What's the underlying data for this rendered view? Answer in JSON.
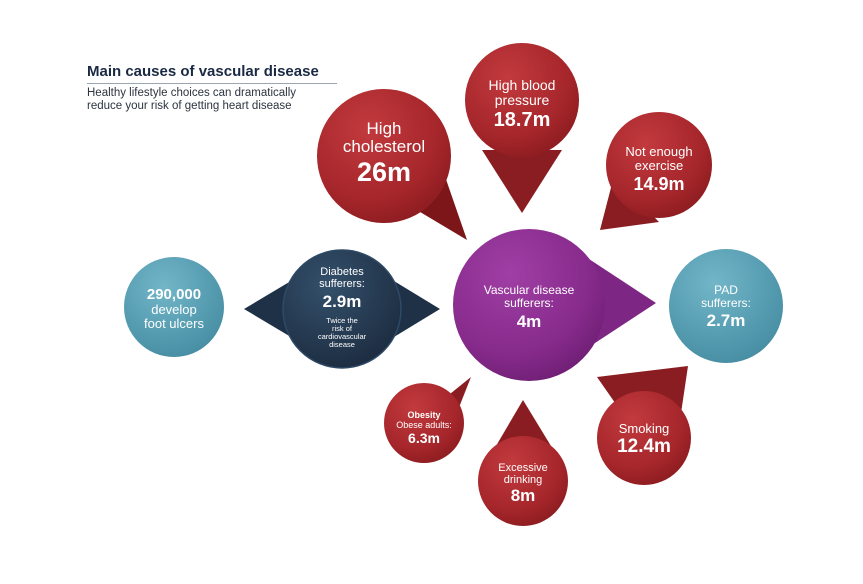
{
  "title": "Main causes of vascular disease",
  "subtitle_line1": "Healthy lifestyle choices can dramatically",
  "subtitle_line2": "reduce your risk of getting heart disease",
  "colors": {
    "risk_red": "#a5262b",
    "risk_red_dark": "#7d1618",
    "vascular_purple": "#8a2c8e",
    "diabetes_navy": "#1f3147",
    "pad_teal": "#4e98ad",
    "title_navy": "#1b2a44"
  },
  "center": {
    "label_line1": "Vascular disease",
    "label_line2": "sufferers:",
    "value": "4m"
  },
  "high_cholesterol": {
    "label_line1": "High",
    "label_line2": "cholesterol",
    "value": "26m"
  },
  "high_blood_pressure": {
    "label_line1": "High blood",
    "label_line2": "pressure",
    "value": "18.7m"
  },
  "not_enough_exercise": {
    "label_line1": "Not enough",
    "label_line2": "exercise",
    "value": "14.9m"
  },
  "pad": {
    "label_line1": "PAD",
    "label_line2": "sufferers:",
    "value": "2.7m"
  },
  "smoking": {
    "label": "Smoking",
    "value": "12.4m"
  },
  "excessive_drinking": {
    "label_line1": "Excessive",
    "label_line2": "drinking",
    "value": "8m"
  },
  "obesity": {
    "label_line1": "Obesity",
    "label_line2": "Obese adults:",
    "value": "6.3m"
  },
  "diabetes": {
    "label_line1": "Diabetes",
    "label_line2": "sufferers:",
    "value": "2.9m",
    "note_line1": "Twice the",
    "note_line2": "risk of",
    "note_line3": "cardiovascular",
    "note_line4": "disease"
  },
  "foot_ulcers": {
    "value": "290,000",
    "label_line1": "develop",
    "label_line2": "foot ulcers"
  }
}
